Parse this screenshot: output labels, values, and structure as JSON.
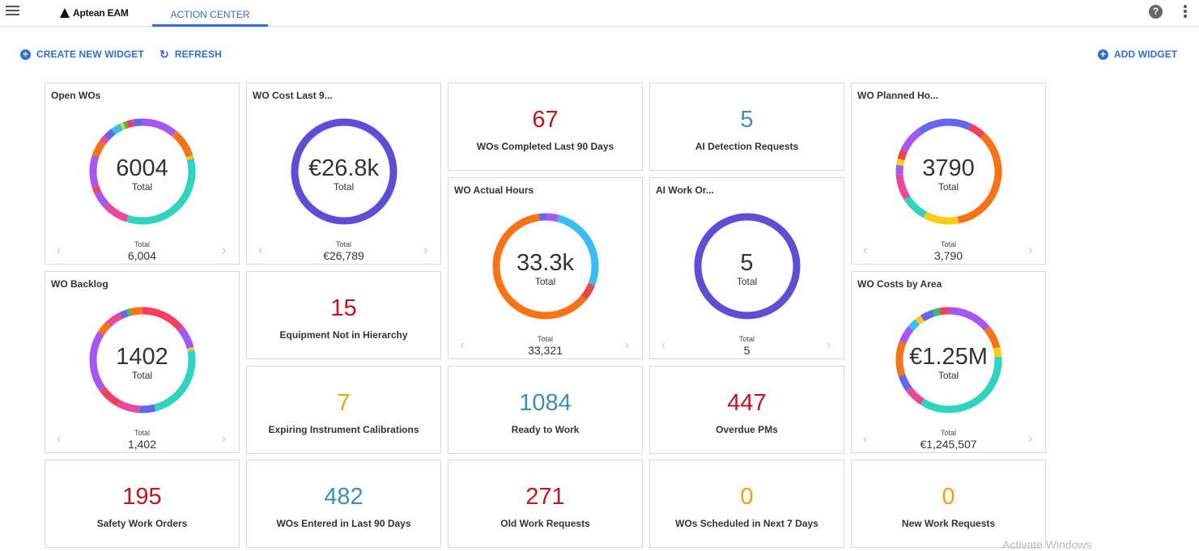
{
  "header": {
    "brand": "Aptean EAM",
    "active_tab": "ACTION CENTER"
  },
  "toolbar": {
    "create_label": "CREATE NEW WIDGET",
    "refresh_label": "REFRESH",
    "add_label": "ADD WIDGET"
  },
  "colors": {
    "accent": "#2f6fd6",
    "kpi_red": "#c0141e",
    "kpi_blue": "#3d8fb5",
    "kpi_orange": "#f39c12",
    "donut_purple": "#5a4fd6"
  },
  "donuts": [
    {
      "id": "open_wos",
      "title": "Open WOs",
      "center": "6004",
      "center_label": "Total",
      "foot_label": "Total",
      "foot_value": "6,004"
    },
    {
      "id": "wo_cost",
      "title": "WO Cost Last 9...",
      "center": "€26.8k",
      "center_label": "Total",
      "foot_label": "Total",
      "foot_value": "€26,789"
    },
    {
      "id": "wo_planned",
      "title": "WO Planned Ho...",
      "center": "3790",
      "center_label": "Total",
      "foot_label": "Total",
      "foot_value": "3,790"
    },
    {
      "id": "wo_actual",
      "title": "WO Actual Hours",
      "center": "33.3k",
      "center_label": "Total",
      "foot_label": "Total",
      "foot_value": "33,321"
    },
    {
      "id": "ai_work",
      "title": "AI Work Or...",
      "center": "5",
      "center_label": "Total",
      "foot_label": "Total",
      "foot_value": "5"
    },
    {
      "id": "wo_backlog",
      "title": "WO Backlog",
      "center": "1402",
      "center_label": "Total",
      "foot_label": "Total",
      "foot_value": "1,402"
    },
    {
      "id": "wo_costs_area",
      "title": "WO Costs by Area",
      "center": "€1.25M",
      "center_label": "Total",
      "foot_label": "Total",
      "foot_value": "€1,245,507"
    }
  ],
  "kpis": [
    {
      "id": "completed",
      "value": "67",
      "label": "WOs Completed Last 90 Days",
      "color": "#c0141e"
    },
    {
      "id": "ai_detect",
      "value": "5",
      "label": "AI Detection Requests",
      "color": "#3d8fb5"
    },
    {
      "id": "equip",
      "value": "15",
      "label": "Equipment Not in Hierarchy",
      "color": "#c0141e"
    },
    {
      "id": "calib",
      "value": "7",
      "label": "Expiring Instrument Calibrations",
      "color": "#f39c12"
    },
    {
      "id": "ready",
      "value": "1084",
      "label": "Ready to Work",
      "color": "#3d8fb5"
    },
    {
      "id": "overdue",
      "value": "447",
      "label": "Overdue PMs",
      "color": "#c0141e"
    },
    {
      "id": "safety",
      "value": "195",
      "label": "Safety Work Orders",
      "color": "#c0141e"
    },
    {
      "id": "entered",
      "value": "482",
      "label": "WOs Entered in Last 90 Days",
      "color": "#3d8fb5"
    },
    {
      "id": "old_req",
      "value": "271",
      "label": "Old Work Requests",
      "color": "#c0141e"
    },
    {
      "id": "scheduled",
      "value": "0",
      "label": "WOs Scheduled in Next 7 Days",
      "color": "#f39c12"
    },
    {
      "id": "new_req",
      "value": "0",
      "label": "New Work Requests",
      "color": "#f39c12"
    }
  ],
  "watermark": "Activate Windows"
}
